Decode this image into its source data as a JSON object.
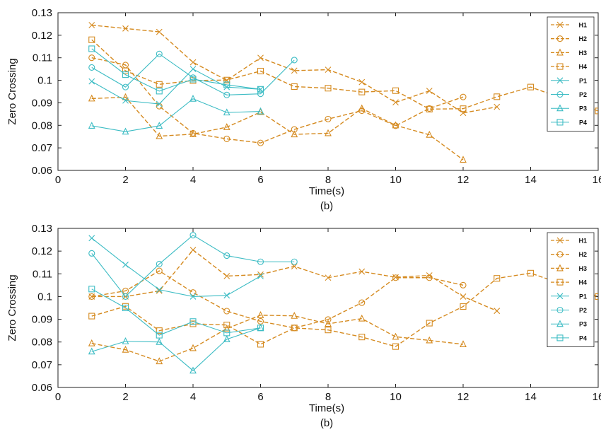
{
  "colors": {
    "human": "#d58a1f",
    "pet": "#3cbcc4"
  },
  "chart_data": [
    {
      "type": "line",
      "title": "",
      "caption": "(b)",
      "xlabel": "Time(s)",
      "ylabel": "Zero Crossing",
      "xlim": [
        0,
        16
      ],
      "ylim": [
        0.06,
        0.13
      ],
      "xticks": [
        "0",
        "2",
        "4",
        "6",
        "8",
        "10",
        "12",
        "14",
        "16"
      ],
      "yticks": [
        "0.06",
        "0.07",
        "0.08",
        "0.09",
        "0.1",
        "0.11",
        "0.12",
        "0.13"
      ],
      "grid": false,
      "legend_position": "top-right",
      "series": [
        {
          "name": "H1",
          "color": "#d58a1f",
          "marker": "x",
          "dash": true,
          "x": [
            1,
            2,
            3,
            4,
            5,
            6,
            7,
            8,
            9,
            10,
            11,
            12,
            13
          ],
          "y": [
            0.1245,
            0.123,
            0.1215,
            0.108,
            0.1,
            0.11,
            0.1043,
            0.1047,
            0.0992,
            0.0902,
            0.0953,
            0.0855,
            0.0882
          ]
        },
        {
          "name": "H2",
          "color": "#d58a1f",
          "marker": "circle",
          "dash": true,
          "x": [
            1,
            2,
            3,
            4,
            5,
            6,
            7,
            8,
            9,
            10,
            11,
            12
          ],
          "y": [
            0.11,
            0.1068,
            0.0885,
            0.0765,
            0.074,
            0.0722,
            0.0782,
            0.0828,
            0.0865,
            0.0798,
            0.0875,
            0.0926
          ]
        },
        {
          "name": "H3",
          "color": "#d58a1f",
          "marker": "triangle",
          "dash": true,
          "x": [
            1,
            2,
            3,
            4,
            5,
            6,
            7,
            8,
            9,
            10,
            11,
            12
          ],
          "y": [
            0.0919,
            0.0925,
            0.0752,
            0.0761,
            0.0792,
            0.0859,
            0.076,
            0.0765,
            0.0875,
            0.08,
            0.0758,
            0.0647
          ]
        },
        {
          "name": "H4",
          "color": "#d58a1f",
          "marker": "square",
          "dash": true,
          "x": [
            1,
            2,
            3,
            4,
            5,
            6,
            7,
            8,
            9,
            10,
            11,
            12,
            13,
            14,
            16
          ],
          "y": [
            0.118,
            0.1042,
            0.0982,
            0.0999,
            0.1001,
            0.1041,
            0.0972,
            0.0965,
            0.0948,
            0.0954,
            0.0872,
            0.0874,
            0.0927,
            0.097,
            0.0864
          ]
        },
        {
          "name": "P1",
          "color": "#3cbcc4",
          "marker": "x",
          "dash": false,
          "x": [
            1,
            2,
            3,
            4,
            5,
            6
          ],
          "y": [
            0.0995,
            0.091,
            0.0895,
            0.105,
            0.097,
            0.096
          ]
        },
        {
          "name": "P2",
          "color": "#3cbcc4",
          "marker": "circle",
          "dash": false,
          "x": [
            1,
            2,
            3,
            4,
            5,
            6,
            7
          ],
          "y": [
            0.1057,
            0.097,
            0.1117,
            0.1012,
            0.0935,
            0.094,
            0.109
          ]
        },
        {
          "name": "P3",
          "color": "#3cbcc4",
          "marker": "triangle",
          "dash": false,
          "x": [
            1,
            2,
            3,
            4,
            5,
            6
          ],
          "y": [
            0.0798,
            0.0772,
            0.0798,
            0.0918,
            0.0857,
            0.0862
          ]
        },
        {
          "name": "P4",
          "color": "#3cbcc4",
          "marker": "square",
          "dash": false,
          "x": [
            1,
            2,
            3,
            4,
            5,
            6
          ],
          "y": [
            0.114,
            0.1025,
            0.0952,
            0.1005,
            0.098,
            0.096
          ]
        }
      ]
    },
    {
      "type": "line",
      "title": "",
      "caption": "(b)",
      "xlabel": "Time(s)",
      "ylabel": "Zero Crossing",
      "xlim": [
        0,
        16
      ],
      "ylim": [
        0.06,
        0.13
      ],
      "xticks": [
        "0",
        "2",
        "4",
        "6",
        "8",
        "10",
        "12",
        "14",
        "16"
      ],
      "yticks": [
        "0.06",
        "0.07",
        "0.08",
        "0.09",
        "0.1",
        "0.11",
        "0.12",
        "0.13"
      ],
      "grid": false,
      "legend_position": "top-right",
      "series": [
        {
          "name": "H1",
          "color": "#d58a1f",
          "marker": "x",
          "dash": true,
          "x": [
            1,
            2,
            3,
            4,
            5,
            6,
            7,
            8,
            9,
            10,
            11,
            12,
            13
          ],
          "y": [
            0.1,
            0.1,
            0.1025,
            0.1205,
            0.109,
            0.1097,
            0.1133,
            0.1083,
            0.111,
            0.1085,
            0.1093,
            0.1,
            0.0937
          ]
        },
        {
          "name": "H2",
          "color": "#d58a1f",
          "marker": "circle",
          "dash": true,
          "x": [
            1,
            2,
            3,
            4,
            5,
            6,
            7,
            8,
            9,
            10,
            11,
            12
          ],
          "y": [
            0.1,
            0.1025,
            0.1113,
            0.1018,
            0.0936,
            0.0891,
            0.0862,
            0.0899,
            0.0973,
            0.1083,
            0.1083,
            0.105
          ]
        },
        {
          "name": "H3",
          "color": "#d58a1f",
          "marker": "triangle",
          "dash": true,
          "x": [
            1,
            2,
            3,
            4,
            5,
            6,
            7,
            8,
            9,
            10,
            11,
            12
          ],
          "y": [
            0.0794,
            0.0766,
            0.0715,
            0.0773,
            0.0859,
            0.0918,
            0.0915,
            0.088,
            0.0903,
            0.0823,
            0.0807,
            0.079
          ]
        },
        {
          "name": "H4",
          "color": "#d58a1f",
          "marker": "square",
          "dash": true,
          "x": [
            1,
            2,
            3,
            4,
            5,
            6,
            7,
            8,
            9,
            10,
            11,
            12,
            13,
            14,
            16
          ],
          "y": [
            0.0914,
            0.0957,
            0.085,
            0.088,
            0.0875,
            0.079,
            0.0862,
            0.0853,
            0.0822,
            0.078,
            0.0883,
            0.0956,
            0.108,
            0.1103,
            0.1
          ]
        },
        {
          "name": "P1",
          "color": "#3cbcc4",
          "marker": "x",
          "dash": false,
          "x": [
            1,
            2,
            3,
            4,
            5,
            6
          ],
          "y": [
            0.1257,
            0.114,
            0.103,
            0.1,
            0.1005,
            0.109
          ]
        },
        {
          "name": "P2",
          "color": "#3cbcc4",
          "marker": "circle",
          "dash": false,
          "x": [
            1,
            2,
            3,
            4,
            5,
            6,
            7
          ],
          "y": [
            0.119,
            0.1,
            0.1143,
            0.127,
            0.118,
            0.1153,
            0.1153
          ]
        },
        {
          "name": "P3",
          "color": "#3cbcc4",
          "marker": "triangle",
          "dash": false,
          "x": [
            1,
            2,
            3,
            4,
            5,
            6
          ],
          "y": [
            0.0758,
            0.0803,
            0.08,
            0.0674,
            0.0812,
            0.0862
          ]
        },
        {
          "name": "P4",
          "color": "#3cbcc4",
          "marker": "square",
          "dash": false,
          "x": [
            1,
            2,
            3,
            4,
            5,
            6
          ],
          "y": [
            0.1033,
            0.095,
            0.083,
            0.089,
            0.084,
            0.0862
          ]
        }
      ]
    }
  ]
}
